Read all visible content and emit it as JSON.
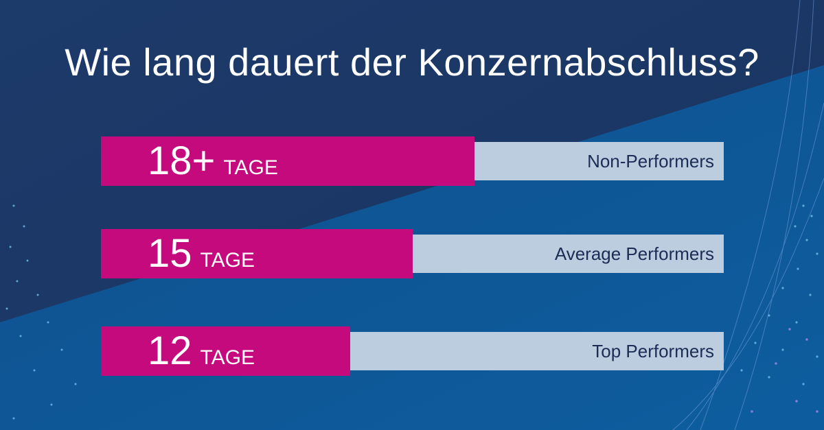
{
  "chart_data": {
    "type": "bar",
    "orientation": "horizontal",
    "title": "Wie lang dauert der Konzernabschluss?",
    "unit": "TAGE",
    "categories": [
      "Non-Performers",
      "Average Performers",
      "Top Performers"
    ],
    "values": [
      18,
      15,
      12
    ],
    "value_labels": [
      "18+",
      "15",
      "12"
    ],
    "xlim": [
      0,
      30
    ],
    "grid": false
  },
  "colors": {
    "background": "#1b3866",
    "bar_fill": "#c40a7c",
    "bar_track": "#bccde0",
    "label_text": "#1b2c55"
  }
}
